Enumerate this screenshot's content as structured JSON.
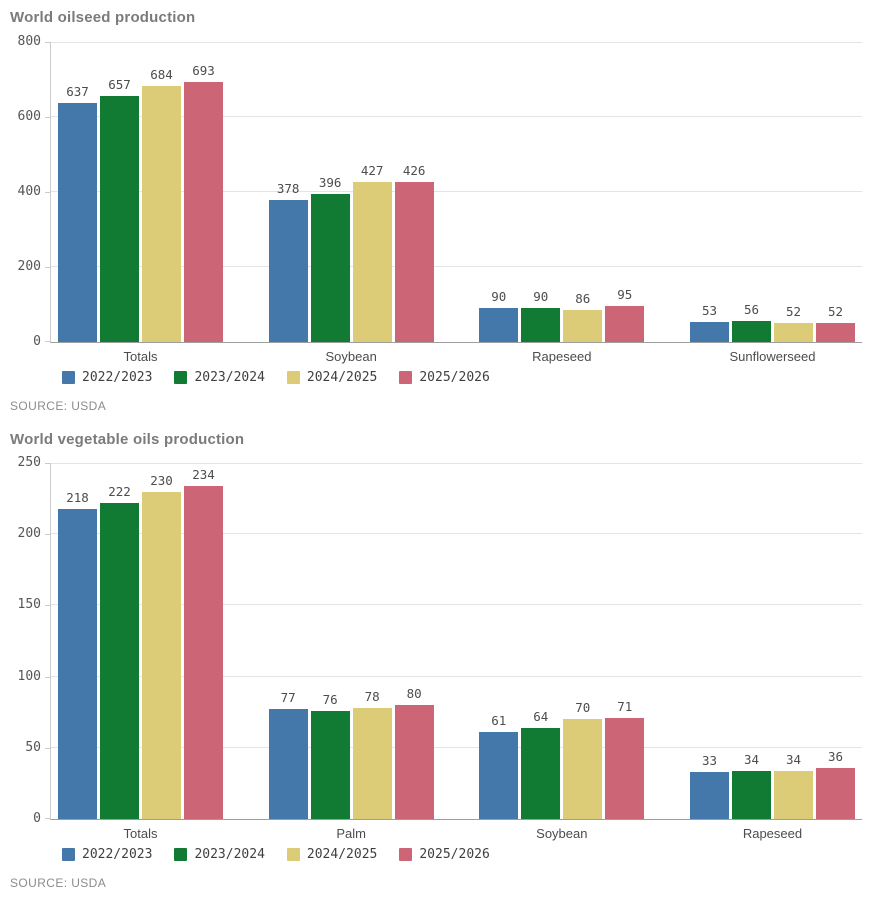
{
  "chart_data": [
    {
      "type": "bar",
      "title": "World oilseed production",
      "source": "SOURCE: USDA",
      "categories": [
        "Totals",
        "Soybean",
        "Rapeseed",
        "Sunflowerseed"
      ],
      "series": [
        {
          "name": "2022/2023",
          "color": "#4477AA",
          "values": [
            637,
            378,
            90,
            53
          ]
        },
        {
          "name": "2023/2024",
          "color": "#117B33",
          "values": [
            657,
            396,
            90,
            56
          ]
        },
        {
          "name": "2024/2025",
          "color": "#DDCC77",
          "values": [
            684,
            427,
            86,
            52
          ]
        },
        {
          "name": "2025/2026",
          "color": "#CC6677",
          "values": [
            693,
            426,
            95,
            52
          ]
        }
      ],
      "xlabel": "",
      "ylabel": "",
      "ylim": [
        0,
        800
      ],
      "y_ticks": [
        0,
        200,
        400,
        600,
        800
      ],
      "grid": true,
      "legend_position": "bottom"
    },
    {
      "type": "bar",
      "title": "World vegetable oils production",
      "source": "SOURCE: USDA",
      "categories": [
        "Totals",
        "Palm",
        "Soybean",
        "Rapeseed"
      ],
      "series": [
        {
          "name": "2022/2023",
          "color": "#4477AA",
          "values": [
            218,
            77,
            61,
            33
          ]
        },
        {
          "name": "2023/2024",
          "color": "#117B33",
          "values": [
            222,
            76,
            64,
            34
          ]
        },
        {
          "name": "2024/2025",
          "color": "#DDCC77",
          "values": [
            230,
            78,
            70,
            34
          ]
        },
        {
          "name": "2025/2026",
          "color": "#CC6677",
          "values": [
            234,
            80,
            71,
            36
          ]
        }
      ],
      "xlabel": "",
      "ylabel": "",
      "ylim": [
        0,
        250
      ],
      "y_ticks": [
        0,
        50,
        100,
        150,
        200,
        250
      ],
      "grid": true,
      "legend_position": "bottom"
    }
  ]
}
